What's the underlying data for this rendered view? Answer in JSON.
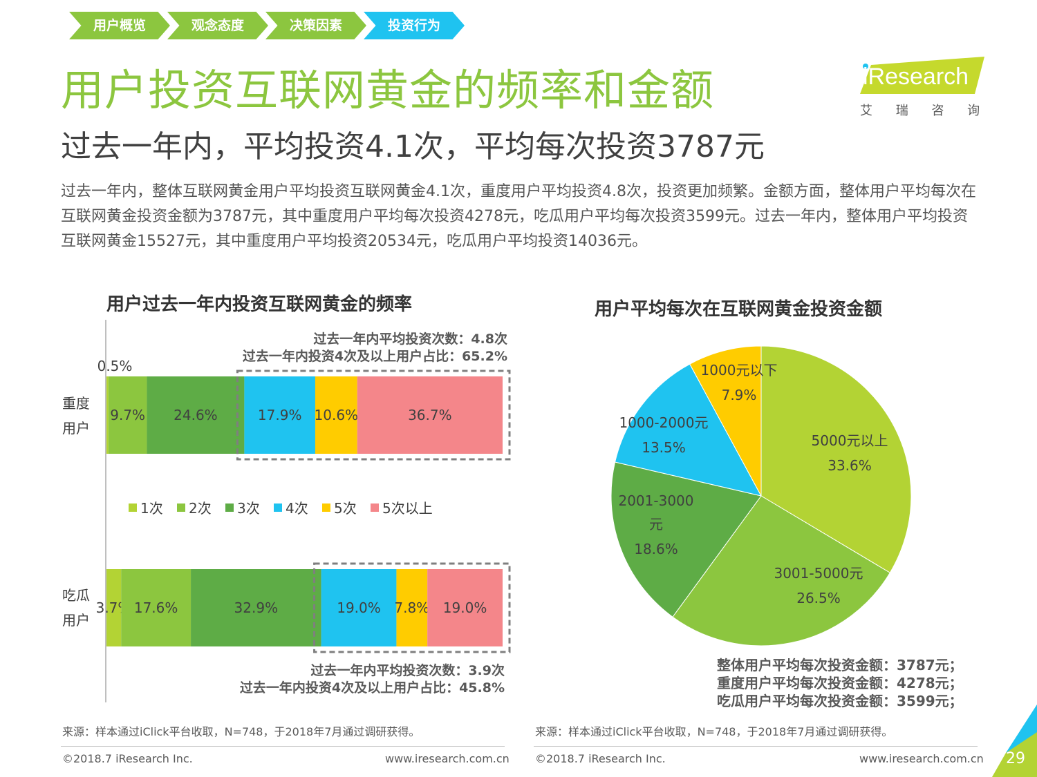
{
  "nav": [
    {
      "label": "用户概览",
      "color": "#8cc63f"
    },
    {
      "label": "观念态度",
      "color": "#8cc63f"
    },
    {
      "label": "决策因素",
      "color": "#8cc63f"
    },
    {
      "label": "投资行为",
      "color": "#1fc3f0"
    }
  ],
  "title": "用户投资互联网黄金的频率和金额",
  "subtitle": "过去一年内，平均投资4.1次，平均每次投资3787元",
  "body": "过去一年内，整体互联网黄金用户平均投资互联网黄金4.1次，重度用户平均投资4.8次，投资更加频繁。金额方面，整体用户平均每次在互联网黄金投资金额为3787元，其中重度用户平均每次投资4278元，吃瓜用户平均每次投资3599元。过去一年内，整体用户平均投资互联网黄金15527元，其中重度用户平均投资20534元，吃瓜用户平均投资14036元。",
  "logo": {
    "brand": "iResearch",
    "sub": "艾 瑞 咨 询"
  },
  "colors": {
    "c1": "#b3d334",
    "c2": "#8cc63f",
    "c3": "#5eac46",
    "c4": "#1fc3f0",
    "c5": "#ffcc00",
    "c6": "#f4868a"
  },
  "chart_data": [
    {
      "type": "bar",
      "orientation": "horizontal-stacked-100",
      "title": "用户过去一年内投资互联网黄金的频率",
      "categories": [
        "重度用户",
        "吃瓜用户"
      ],
      "series": [
        {
          "name": "1次",
          "values": [
            0.5,
            3.7
          ],
          "color": "#b3d334"
        },
        {
          "name": "2次",
          "values": [
            9.7,
            17.6
          ],
          "color": "#8cc63f"
        },
        {
          "name": "3次",
          "values": [
            24.6,
            32.9
          ],
          "color": "#5eac46"
        },
        {
          "name": "4次",
          "values": [
            17.9,
            19.0
          ],
          "color": "#1fc3f0"
        },
        {
          "name": "5次",
          "values": [
            10.6,
            7.8
          ],
          "color": "#ffcc00"
        },
        {
          "name": "5次以上",
          "values": [
            36.7,
            19.0
          ],
          "color": "#f4868a"
        }
      ],
      "data_labels": [
        [
          "0.5%",
          "9.7%",
          "24.6%",
          "17.9%",
          "10.6%",
          "36.7%"
        ],
        [
          "3.7%",
          "17.6%",
          "32.9%",
          "19.0%",
          "7.8%",
          "19.0%"
        ]
      ],
      "legend_position": "middle",
      "annotations": [
        {
          "line1": "过去一年内平均投资次数：4.8次",
          "line2": "过去一年内投资4次及以上用户占比：65.2%"
        },
        {
          "line1": "过去一年内平均投资次数：3.9次",
          "line2": "过去一年内投资4次及以上用户占比：45.8%"
        }
      ]
    },
    {
      "type": "pie",
      "title": "用户平均每次在互联网黄金投资金额",
      "slices": [
        {
          "name": "5000元以上",
          "value": 33.6,
          "label": "33.6%",
          "color": "#b3d334"
        },
        {
          "name": "3001-5000元",
          "value": 26.5,
          "label": "26.5%",
          "color": "#8cc63f"
        },
        {
          "name": "2001-3000元",
          "value": 18.6,
          "label": "18.6%",
          "color": "#5eac46"
        },
        {
          "name": "1000-2000元",
          "value": 13.5,
          "label": "13.5%",
          "color": "#1fc3f0"
        },
        {
          "name": "1000元以下",
          "value": 7.9,
          "label": "7.9%",
          "color": "#ffcc00"
        }
      ],
      "summary": [
        "整体用户平均每次投资金额：3787元；",
        "重度用户平均每次投资金额：4278元；",
        "吃瓜用户平均每次投资金额：3599元；"
      ]
    }
  ],
  "source": "来源：样本通过iClick平台收取，N=748，于2018年7月通过调研获得。",
  "footer": {
    "copyright": "©2018.7 iResearch Inc.",
    "url": "www.iresearch.com.cn",
    "page": "29"
  }
}
